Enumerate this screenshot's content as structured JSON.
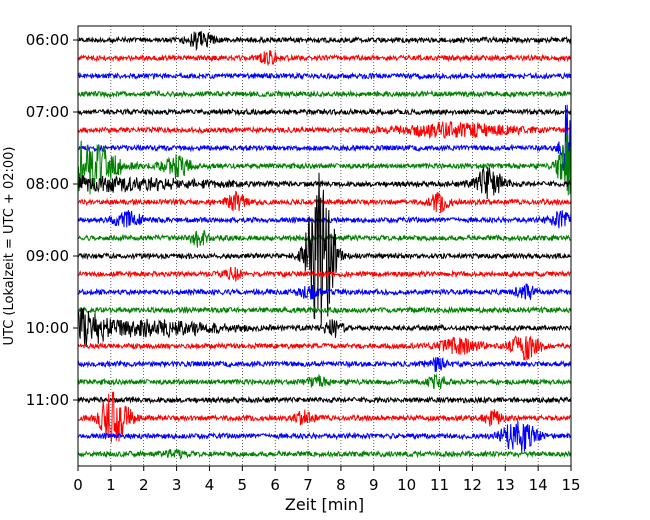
{
  "chart_data": {
    "type": "line",
    "title": "",
    "xlabel": "Zeit  [min]",
    "ylabel": "UTC (Lokalzeit = UTC + 02:00)",
    "xlim": [
      0,
      15
    ],
    "ylim": [
      "06:00",
      "11:45"
    ],
    "x_ticks": [
      "0",
      "1",
      "2",
      "3",
      "4",
      "5",
      "6",
      "7",
      "8",
      "9",
      "10",
      "11",
      "12",
      "13",
      "14",
      "15"
    ],
    "y_ticks": [
      "06:00",
      "07:00",
      "08:00",
      "09:00",
      "10:00",
      "11:00"
    ],
    "grid": "vertical dotted lines at every minute",
    "trace_interval_min": 15,
    "color_cycle": [
      "#000000",
      "#ff0000",
      "#0000ff",
      "#008000"
    ],
    "traces": [
      {
        "start": "06:00",
        "color": "#000000"
      },
      {
        "start": "06:15",
        "color": "#ff0000"
      },
      {
        "start": "06:30",
        "color": "#0000ff"
      },
      {
        "start": "06:45",
        "color": "#008000"
      },
      {
        "start": "07:00",
        "color": "#000000"
      },
      {
        "start": "07:15",
        "color": "#ff0000"
      },
      {
        "start": "07:30",
        "color": "#0000ff"
      },
      {
        "start": "07:45",
        "color": "#008000"
      },
      {
        "start": "08:00",
        "color": "#000000"
      },
      {
        "start": "08:15",
        "color": "#ff0000"
      },
      {
        "start": "08:30",
        "color": "#0000ff"
      },
      {
        "start": "08:45",
        "color": "#008000"
      },
      {
        "start": "09:00",
        "color": "#000000"
      },
      {
        "start": "09:15",
        "color": "#ff0000"
      },
      {
        "start": "09:30",
        "color": "#0000ff"
      },
      {
        "start": "09:45",
        "color": "#008000"
      },
      {
        "start": "10:00",
        "color": "#000000"
      },
      {
        "start": "10:15",
        "color": "#ff0000"
      },
      {
        "start": "10:30",
        "color": "#0000ff"
      },
      {
        "start": "10:45",
        "color": "#008000"
      },
      {
        "start": "11:00",
        "color": "#000000"
      },
      {
        "start": "11:15",
        "color": "#ff0000"
      },
      {
        "start": "11:30",
        "color": "#0000ff"
      },
      {
        "start": "11:45",
        "color": "#008000"
      }
    ],
    "events": [
      {
        "trace": 0,
        "t": 3.7,
        "amp": 0.35,
        "width": 0.3
      },
      {
        "trace": 1,
        "t": 5.8,
        "amp": 0.25,
        "width": 0.2
      },
      {
        "trace": 5,
        "t": 11.5,
        "amp": 0.3,
        "width": 1.2
      },
      {
        "trace": 6,
        "t": 14.95,
        "amp": 2.6,
        "width": 0.15
      },
      {
        "trace": 7,
        "t": 0.1,
        "amp": 1.3,
        "width": 0.7
      },
      {
        "trace": 7,
        "t": 3.0,
        "amp": 0.5,
        "width": 0.3
      },
      {
        "trace": 7,
        "t": 14.9,
        "amp": 1.6,
        "width": 0.2
      },
      {
        "trace": 8,
        "t": 12.5,
        "amp": 0.75,
        "width": 0.3
      },
      {
        "trace": 8,
        "t": 0.8,
        "amp": 0.3,
        "width": 2.0
      },
      {
        "trace": 9,
        "t": 4.8,
        "amp": 0.4,
        "width": 0.2
      },
      {
        "trace": 9,
        "t": 11.0,
        "amp": 0.4,
        "width": 0.2
      },
      {
        "trace": 10,
        "t": 1.5,
        "amp": 0.35,
        "width": 0.3
      },
      {
        "trace": 10,
        "t": 14.8,
        "amp": 0.4,
        "width": 0.3
      },
      {
        "trace": 11,
        "t": 3.7,
        "amp": 0.35,
        "width": 0.2
      },
      {
        "trace": 12,
        "t": 7.35,
        "amp": 4.0,
        "width": 0.25
      },
      {
        "trace": 12,
        "t": 7.65,
        "amp": 0.5,
        "width": 0.2
      },
      {
        "trace": 13,
        "t": 4.7,
        "amp": 0.3,
        "width": 0.2
      },
      {
        "trace": 14,
        "t": 13.6,
        "amp": 0.35,
        "width": 0.2
      },
      {
        "trace": 14,
        "t": 7.0,
        "amp": 0.3,
        "width": 0.2
      },
      {
        "trace": 16,
        "t": 0.25,
        "amp": 0.8,
        "width": 0.4
      },
      {
        "trace": 16,
        "t": 2.2,
        "amp": 0.35,
        "width": 1.5
      },
      {
        "trace": 16,
        "t": 7.8,
        "amp": 0.35,
        "width": 0.2
      },
      {
        "trace": 17,
        "t": 11.6,
        "amp": 0.35,
        "width": 0.4
      },
      {
        "trace": 17,
        "t": 13.6,
        "amp": 0.6,
        "width": 0.3
      },
      {
        "trace": 18,
        "t": 10.9,
        "amp": 0.35,
        "width": 0.2
      },
      {
        "trace": 19,
        "t": 10.9,
        "amp": 0.3,
        "width": 0.2
      },
      {
        "trace": 19,
        "t": 7.3,
        "amp": 0.25,
        "width": 0.2
      },
      {
        "trace": 21,
        "t": 1.1,
        "amp": 1.25,
        "width": 0.3
      },
      {
        "trace": 21,
        "t": 6.9,
        "amp": 0.3,
        "width": 0.2
      },
      {
        "trace": 21,
        "t": 12.6,
        "amp": 0.3,
        "width": 0.2
      },
      {
        "trace": 22,
        "t": 13.4,
        "amp": 0.75,
        "width": 0.35
      },
      {
        "trace": 23,
        "t": 3.0,
        "amp": 0.2,
        "width": 0.2
      }
    ]
  }
}
